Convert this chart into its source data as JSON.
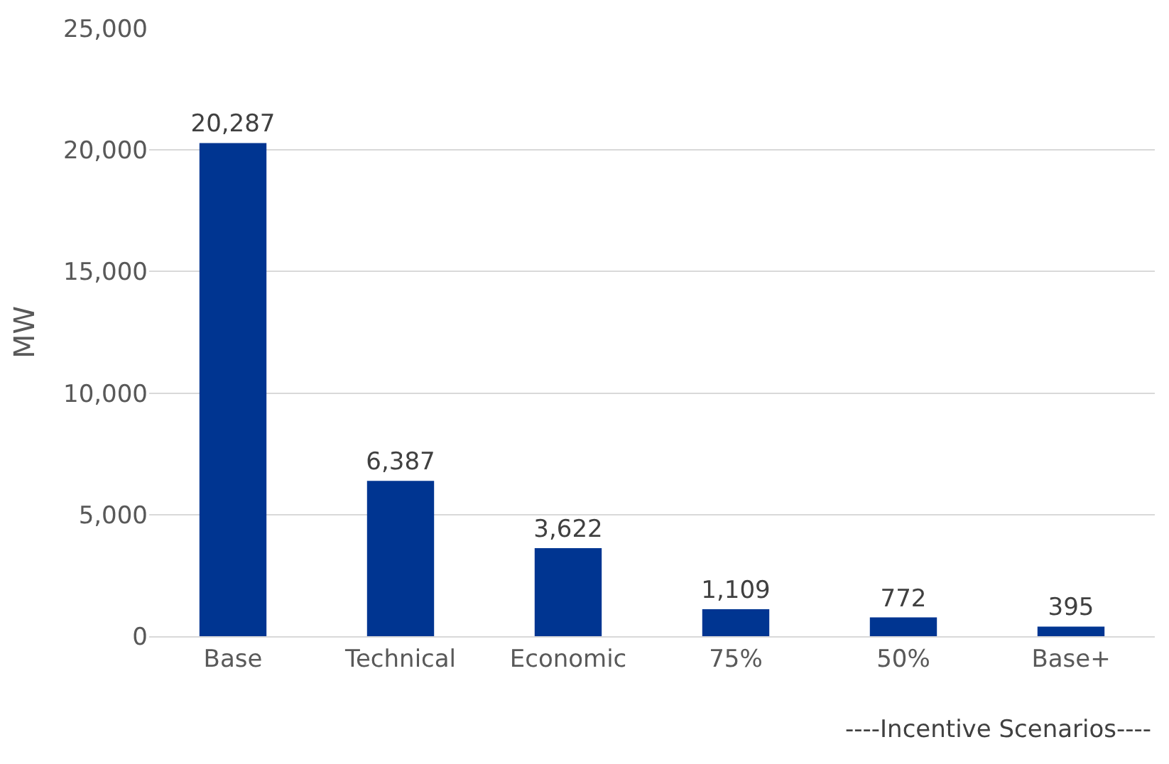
{
  "chart_data": {
    "type": "bar",
    "ylabel": "MW",
    "categories": [
      "Base",
      "Technical",
      "Economic",
      "75%",
      "50%",
      "Base+"
    ],
    "values": [
      20287,
      6387,
      3622,
      1109,
      772,
      395
    ],
    "color": "#003591",
    "ylim": [
      0,
      25000
    ],
    "yticks": [
      {
        "value": 0,
        "label": "0"
      },
      {
        "value": 5000,
        "label": "5,000"
      },
      {
        "value": 10000,
        "label": "10,000"
      },
      {
        "value": 15000,
        "label": "15,000"
      },
      {
        "value": 20000,
        "label": "20,000"
      },
      {
        "value": 25000,
        "label": "25,000"
      }
    ],
    "value_labels": [
      "20,287",
      "6,387",
      "3,622",
      "1,109",
      "772",
      "395"
    ],
    "grid": "y",
    "annotations": [
      "----Incentive Scenarios----"
    ]
  }
}
